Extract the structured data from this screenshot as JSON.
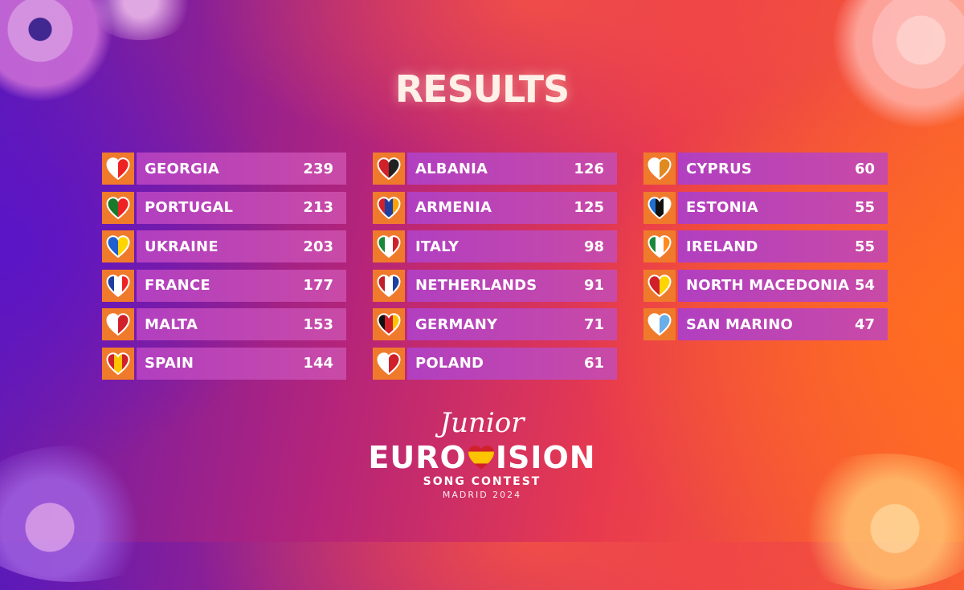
{
  "title": "RESULTS",
  "columns": [
    [
      {
        "country": "GEORGIA",
        "points": "239",
        "flag_colors": [
          "#ffffff",
          "#e22"
        ],
        "flag_icon": "georgia-flag-heart-icon"
      },
      {
        "country": "PORTUGAL",
        "points": "213",
        "flag_colors": [
          "#1a7a2a",
          "#e22"
        ],
        "flag_icon": "portugal-flag-heart-icon"
      },
      {
        "country": "UKRAINE",
        "points": "203",
        "flag_colors": [
          "#1f5fd0",
          "#ffd500"
        ],
        "flag_icon": "ukraine-flag-heart-icon"
      },
      {
        "country": "FRANCE",
        "points": "177",
        "flag_colors": [
          "#1f3fa0",
          "#ffffff",
          "#e22"
        ],
        "flag_icon": "france-flag-heart-icon"
      },
      {
        "country": "MALTA",
        "points": "153",
        "flag_colors": [
          "#ffffff",
          "#d0202a"
        ],
        "flag_icon": "malta-flag-heart-icon"
      },
      {
        "country": "SPAIN",
        "points": "144",
        "flag_colors": [
          "#d0202a",
          "#ffc400",
          "#d0202a"
        ],
        "flag_icon": "spain-flag-heart-icon"
      }
    ],
    [
      {
        "country": "ALBANIA",
        "points": "126",
        "flag_colors": [
          "#d0202a",
          "#222222"
        ],
        "flag_icon": "albania-flag-heart-icon"
      },
      {
        "country": "ARMENIA",
        "points": "125",
        "flag_colors": [
          "#d0202a",
          "#1f3fa0",
          "#ff9f00"
        ],
        "flag_icon": "armenia-flag-heart-icon"
      },
      {
        "country": "ITALY",
        "points": "98",
        "flag_colors": [
          "#1a8a3a",
          "#ffffff",
          "#d0202a"
        ],
        "flag_icon": "italy-flag-heart-icon"
      },
      {
        "country": "NETHERLANDS",
        "points": "91",
        "flag_colors": [
          "#c0202a",
          "#ffffff",
          "#1f3fa0"
        ],
        "flag_icon": "netherlands-flag-heart-icon"
      },
      {
        "country": "GERMANY",
        "points": "71",
        "flag_colors": [
          "#111111",
          "#d0202a",
          "#ffc400"
        ],
        "flag_icon": "germany-flag-heart-icon"
      },
      {
        "country": "POLAND",
        "points": "61",
        "flag_colors": [
          "#ffffff",
          "#d0202a"
        ],
        "flag_icon": "poland-flag-heart-icon"
      }
    ],
    [
      {
        "country": "CYPRUS",
        "points": "60",
        "flag_colors": [
          "#ffffff",
          "#e08a20"
        ],
        "flag_icon": "cyprus-flag-heart-icon"
      },
      {
        "country": "ESTONIA",
        "points": "55",
        "flag_colors": [
          "#1f6fd0",
          "#111111",
          "#ffffff"
        ],
        "flag_icon": "estonia-flag-heart-icon"
      },
      {
        "country": "IRELAND",
        "points": "55",
        "flag_colors": [
          "#1a8a3a",
          "#ffffff",
          "#ff8a20"
        ],
        "flag_icon": "ireland-flag-heart-icon"
      },
      {
        "country": "NORTH MACEDONIA",
        "points": "54",
        "flag_colors": [
          "#d0202a",
          "#ffd500"
        ],
        "flag_icon": "north-macedonia-flag-heart-icon"
      },
      {
        "country": "SAN MARINO",
        "points": "47",
        "flag_colors": [
          "#ffffff",
          "#6aaee8"
        ],
        "flag_icon": "san-marino-flag-heart-icon"
      }
    ]
  ],
  "logo": {
    "junior": "Junior",
    "euro": "EURO",
    "vision": "ISION",
    "subtitle": "SONG CONTEST",
    "city": "MADRID 2024",
    "heart_colors": [
      "#d0202a",
      "#ffc400"
    ]
  }
}
